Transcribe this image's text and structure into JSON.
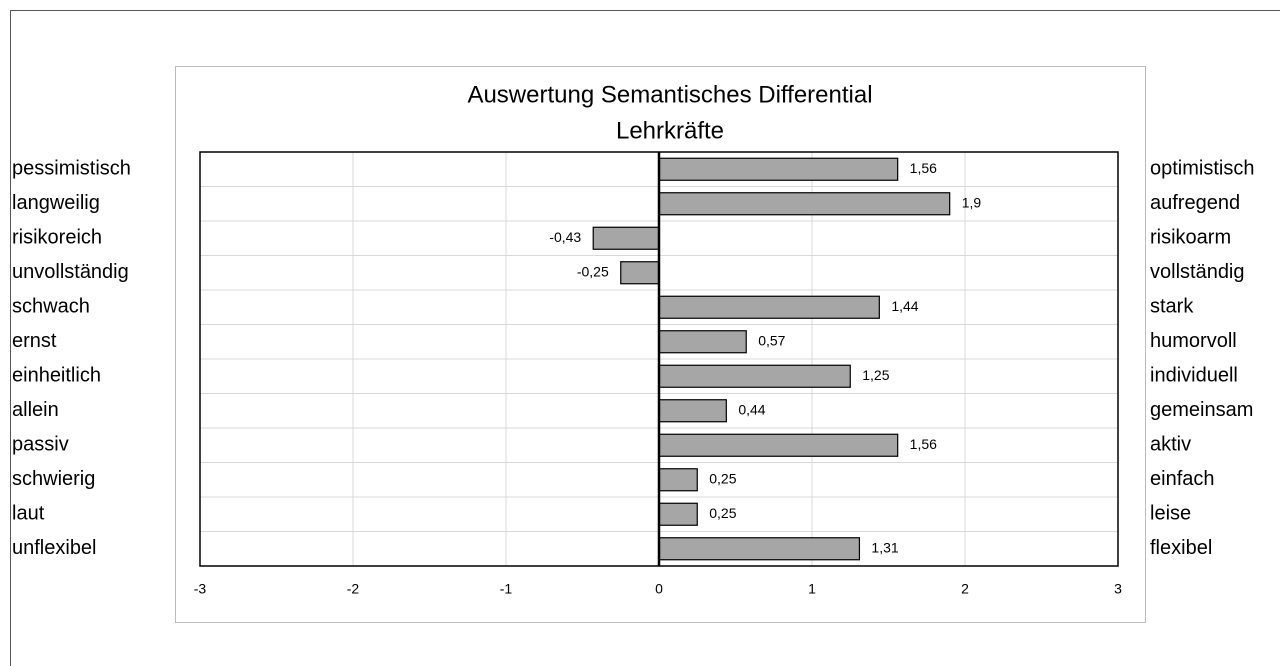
{
  "chart_data": {
    "type": "bar",
    "orientation": "horizontal",
    "title": "Auswertung Semantisches Differential",
    "subtitle": "Lehrkräfte",
    "categories": [
      "pessimistisch",
      "langweilig",
      "risikoreich",
      "unvollständig",
      "schwach",
      "ernst",
      "einheitlich",
      "allein",
      "passiv",
      "schwierig",
      "laut",
      "unflexibel"
    ],
    "categories_right": [
      "optimistisch",
      "aufregend",
      "risikoarm",
      "vollständig",
      "stark",
      "humorvoll",
      "individuell",
      "gemeinsam",
      "aktiv",
      "einfach",
      "leise",
      "flexibel"
    ],
    "values": [
      1.56,
      1.9,
      -0.43,
      -0.25,
      1.44,
      0.57,
      1.25,
      0.44,
      1.56,
      0.25,
      0.25,
      1.31
    ],
    "value_labels": [
      "1,56",
      "1,9",
      "-0,43",
      "-0,25",
      "1,44",
      "0,57",
      "1,25",
      "0,44",
      "1,56",
      "0,25",
      "0,25",
      "1,31"
    ],
    "color": "#a6a6a6",
    "xlim": [
      -3,
      3
    ],
    "xticks": [
      -3,
      -2,
      -1,
      0,
      1,
      2,
      3
    ],
    "grid": true
  }
}
